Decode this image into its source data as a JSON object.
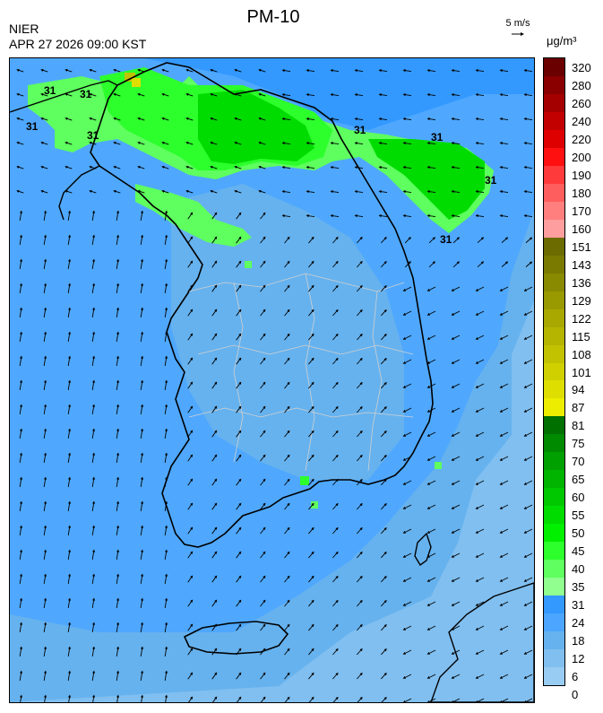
{
  "header": {
    "agency": "NIER",
    "datetime": "APR 27 2026 09:00 KST",
    "title": "PM-10",
    "wind_ref_label": "5 m/s",
    "unit": "μg/m³"
  },
  "contour_labels": [
    "31",
    "31",
    "31",
    "31",
    "31",
    "31",
    "31",
    "31"
  ],
  "legend": {
    "ticks": [
      "320",
      "280",
      "260",
      "240",
      "220",
      "200",
      "190",
      "180",
      "170",
      "160",
      "151",
      "143",
      "136",
      "129",
      "122",
      "115",
      "108",
      "101",
      "94",
      "87",
      "81",
      "75",
      "70",
      "65",
      "60",
      "55",
      "50",
      "45",
      "40",
      "35",
      "31",
      "24",
      "18",
      "12",
      "6",
      "0"
    ],
    "colors": [
      "#6b0000",
      "#8a0000",
      "#a50000",
      "#c20000",
      "#de0000",
      "#ff1010",
      "#ff3a3a",
      "#ff5e5e",
      "#ff7e7e",
      "#ff9e9e",
      "#6b6b00",
      "#7a7a00",
      "#8a8a00",
      "#999900",
      "#a8a800",
      "#b5b500",
      "#c2c200",
      "#d0d000",
      "#dede00",
      "#eded00",
      "#007000",
      "#008a00",
      "#00a000",
      "#00b400",
      "#00c800",
      "#00dc00",
      "#00f000",
      "#2cff2c",
      "#5eff5e",
      "#90ff90",
      "#3399ff",
      "#4ca6ff",
      "#66b2ee",
      "#80bff0",
      "#99ccf2"
    ]
  },
  "colors": {
    "land_outline": "#000000",
    "province_outline": "#d0d0d0",
    "wind_arrow": "#000000"
  }
}
